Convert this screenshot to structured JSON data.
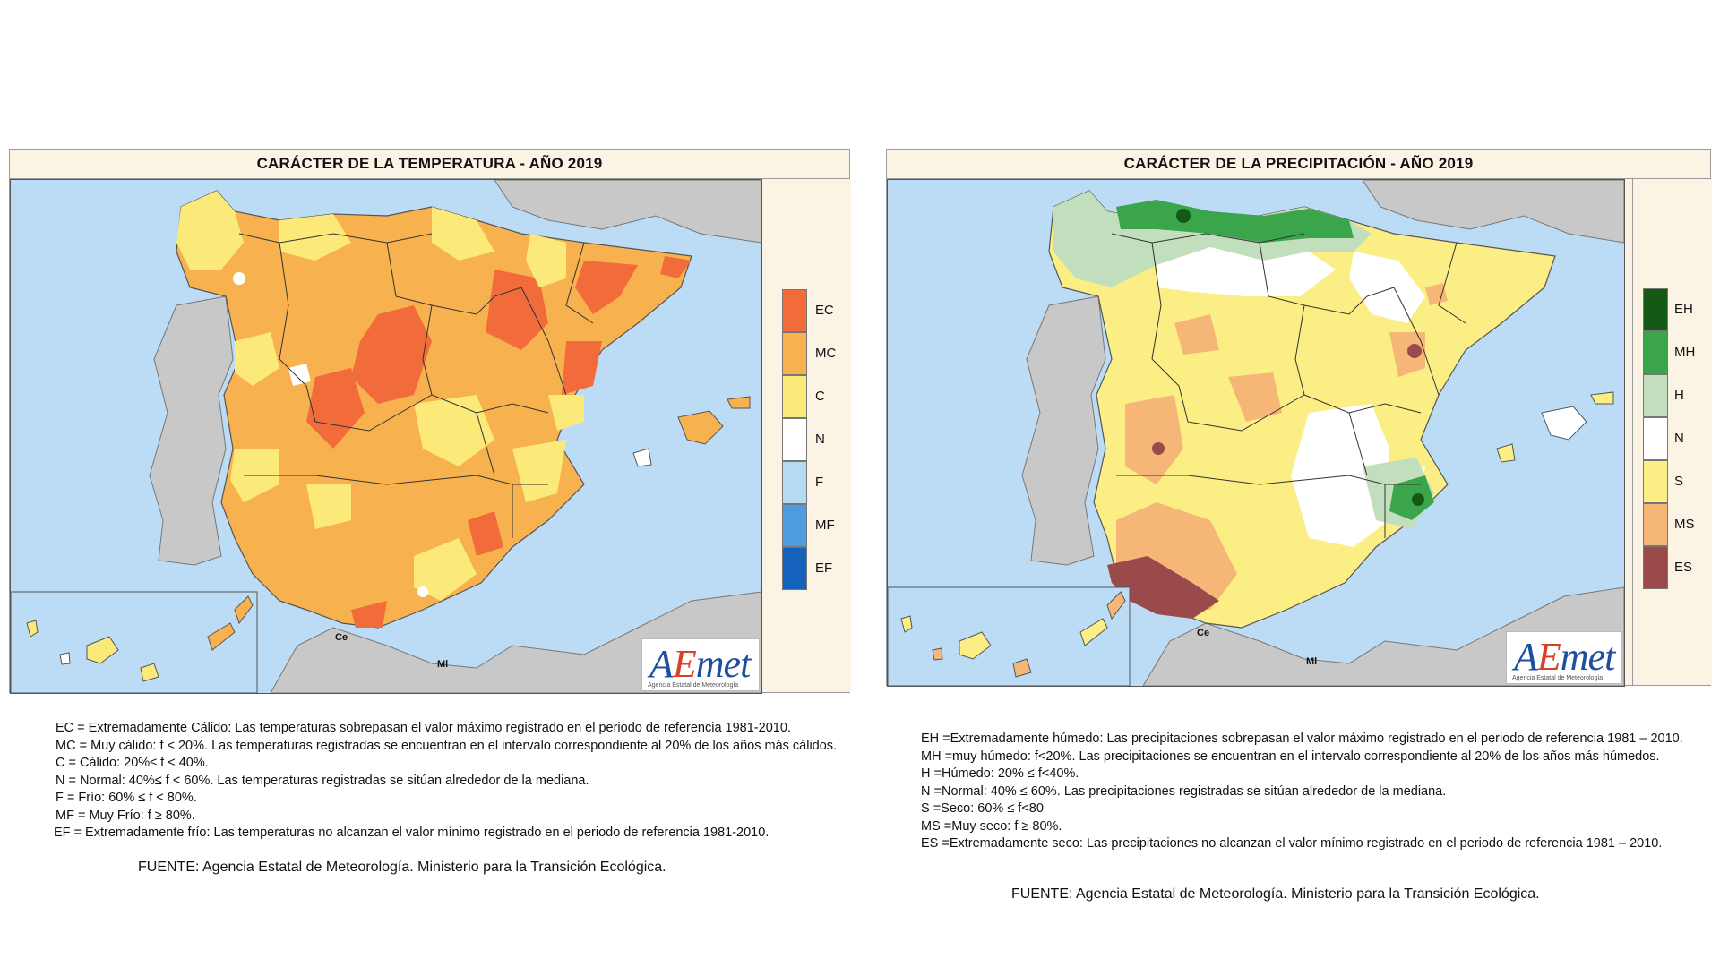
{
  "temperature_map": {
    "title": "CARÁCTER DE LA TEMPERATURA - AÑO 2019",
    "legend": [
      {
        "code": "EC",
        "color": "#f26b3a"
      },
      {
        "code": "MC",
        "color": "#f7b24f"
      },
      {
        "code": "C",
        "color": "#fbe97a"
      },
      {
        "code": "N",
        "color": "#ffffff"
      },
      {
        "code": "F",
        "color": "#b5dbf3"
      },
      {
        "code": "MF",
        "color": "#4d9be0"
      },
      {
        "code": "EF",
        "color": "#1562bd"
      }
    ],
    "place_labels": {
      "ceuta": "Ce",
      "melilla": "Ml"
    },
    "notes": [
      "EC = Extremadamente Cálido: Las temperaturas sobrepasan el valor máximo registrado en el periodo de referencia 1981-2010.",
      "MC = Muy cálido: f < 20%. Las temperaturas registradas se encuentran en el intervalo correspondiente al 20% de los años más cálidos.",
      "C = Cálido: 20%≤ f < 40%.",
      "N = Normal: 40%≤ f < 60%. Las temperaturas registradas se sitúan alrededor de la mediana.",
      "F = Frío: 60% ≤ f < 80%.",
      "MF = Muy Frío: f ≥ 80%.",
      "EF = Extremadamente frío: Las temperaturas no alcanzan el valor mínimo registrado en el periodo de referencia 1981-2010."
    ],
    "source": "FUENTE: Agencia Estatal de Meteorología. Ministerio para la Transición Ecológica."
  },
  "precipitation_map": {
    "title": "CARÁCTER DE LA PRECIPITACIÓN - AÑO  2019",
    "legend": [
      {
        "code": "EH",
        "color": "#145a14"
      },
      {
        "code": "MH",
        "color": "#3aa54a"
      },
      {
        "code": "H",
        "color": "#c2dfbd"
      },
      {
        "code": "N",
        "color": "#ffffff"
      },
      {
        "code": "S",
        "color": "#fbee84"
      },
      {
        "code": "MS",
        "color": "#f5b678"
      },
      {
        "code": "ES",
        "color": "#9a4a4a"
      }
    ],
    "place_labels": {
      "ceuta": "Ce",
      "melilla": "Ml"
    },
    "notes": [
      "EH   =Extremadamente húmedo: Las precipitaciones sobrepasan el valor máximo registrado en el periodo de referencia 1981 – 2010.",
      "MH  =muy húmedo: f<20%. Las precipitaciones se encuentran en el intervalo correspondiente al 20% de los años más  húmedos.",
      "H     =Húmedo: 20% ≤ f<40%.",
      "N     =Normal: 40% ≤ 60%. Las precipitaciones registradas se sitúan alrededor de la mediana.",
      "S     =Seco: 60%  ≤ f<80",
      "MS  =Muy seco: f ≥ 80%.",
      "ES   =Extremadamente  seco: Las precipitaciones no alcanzan el valor mínimo registrado en el periodo de referencia 1981 – 2010."
    ],
    "source": "FUENTE: Agencia Estatal de Meteorología. Ministerio para la Transición Ecológica."
  },
  "logo": {
    "brand": "AEmet",
    "brand_prefix": "A",
    "brand_e": "E",
    "brand_rest": "met",
    "subtitle": "Agencia Estatal de Meteorología"
  },
  "colors": {
    "sea": "#bcdcf5",
    "land_other": "#c8c8c8",
    "panel_bg": "#fbf3e4"
  }
}
